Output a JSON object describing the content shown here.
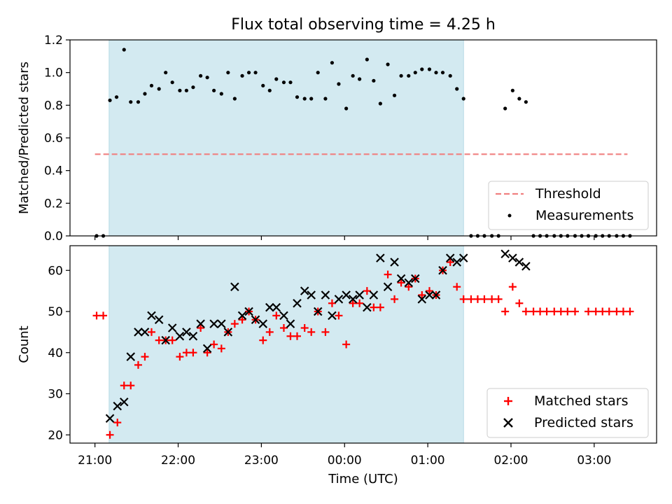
{
  "chart_data": [
    {
      "type": "scatter",
      "title": "Flux total observing time = 4.25 h",
      "xlabel": "",
      "ylabel": "Matched/Predicted stars",
      "xlim": [
        20.7,
        27.75
      ],
      "ylim": [
        0,
        1.2
      ],
      "yticks": [
        0,
        0.2,
        0.4,
        0.6,
        0.8,
        1.0,
        1.2
      ],
      "ytick_labels": [
        "0.0",
        "0.2",
        "0.4",
        "0.6",
        "0.8",
        "1.0",
        "1.2"
      ],
      "shaded_span_x": [
        21.17,
        25.43
      ],
      "shaded_color": "#d3eaf1",
      "threshold": {
        "name": "Threshold",
        "y": 0.5,
        "x": [
          21.0,
          27.4
        ],
        "color": "#f08080",
        "style": "dashed"
      },
      "legend_position": "lower-right",
      "legend": [
        "Threshold",
        "Measurements"
      ],
      "series": [
        {
          "name": "Measurements",
          "color": "#000000",
          "marker": "dot",
          "points": [
            [
              21.02,
              0.0
            ],
            [
              21.1,
              0.0
            ],
            [
              21.18,
              0.83
            ],
            [
              21.26,
              0.85
            ],
            [
              21.35,
              1.14
            ],
            [
              21.43,
              0.82
            ],
            [
              21.52,
              0.82
            ],
            [
              21.6,
              0.87
            ],
            [
              21.68,
              0.92
            ],
            [
              21.77,
              0.9
            ],
            [
              21.85,
              1.0
            ],
            [
              21.93,
              0.94
            ],
            [
              22.02,
              0.89
            ],
            [
              22.1,
              0.89
            ],
            [
              22.18,
              0.91
            ],
            [
              22.27,
              0.98
            ],
            [
              22.35,
              0.97
            ],
            [
              22.43,
              0.89
            ],
            [
              22.52,
              0.87
            ],
            [
              22.6,
              1.0
            ],
            [
              22.68,
              0.84
            ],
            [
              22.77,
              0.98
            ],
            [
              22.85,
              1.0
            ],
            [
              22.93,
              1.0
            ],
            [
              23.02,
              0.92
            ],
            [
              23.1,
              0.89
            ],
            [
              23.18,
              0.96
            ],
            [
              23.27,
              0.94
            ],
            [
              23.35,
              0.94
            ],
            [
              23.43,
              0.85
            ],
            [
              23.52,
              0.84
            ],
            [
              23.6,
              0.84
            ],
            [
              23.68,
              1.0
            ],
            [
              23.77,
              0.84
            ],
            [
              23.85,
              1.06
            ],
            [
              23.93,
              0.93
            ],
            [
              24.02,
              0.78
            ],
            [
              24.1,
              0.98
            ],
            [
              24.18,
              0.96
            ],
            [
              24.27,
              1.08
            ],
            [
              24.35,
              0.95
            ],
            [
              24.43,
              0.81
            ],
            [
              24.52,
              1.05
            ],
            [
              24.6,
              0.86
            ],
            [
              24.68,
              0.98
            ],
            [
              24.77,
              0.98
            ],
            [
              24.85,
              1.0
            ],
            [
              24.93,
              1.02
            ],
            [
              25.02,
              1.02
            ],
            [
              25.1,
              1.0
            ],
            [
              25.18,
              1.0
            ],
            [
              25.27,
              0.98
            ],
            [
              25.35,
              0.9
            ],
            [
              25.43,
              0.84
            ],
            [
              25.52,
              0.0
            ],
            [
              25.6,
              0.0
            ],
            [
              25.68,
              0.0
            ],
            [
              25.77,
              0.0
            ],
            [
              25.85,
              0.0
            ],
            [
              25.93,
              0.78
            ],
            [
              26.02,
              0.89
            ],
            [
              26.1,
              0.84
            ],
            [
              26.18,
              0.82
            ],
            [
              26.27,
              0.0
            ],
            [
              26.35,
              0.0
            ],
            [
              26.43,
              0.0
            ],
            [
              26.52,
              0.0
            ],
            [
              26.6,
              0.0
            ],
            [
              26.68,
              0.0
            ],
            [
              26.77,
              0.0
            ],
            [
              26.85,
              0.0
            ],
            [
              26.93,
              0.0
            ],
            [
              27.02,
              0.0
            ],
            [
              27.1,
              0.0
            ],
            [
              27.18,
              0.0
            ],
            [
              27.27,
              0.0
            ],
            [
              27.35,
              0.0
            ],
            [
              27.43,
              0.0
            ]
          ]
        }
      ]
    },
    {
      "type": "scatter",
      "title": "",
      "xlabel": "Time (UTC)",
      "ylabel": "Count",
      "xlim": [
        20.7,
        27.75
      ],
      "ylim": [
        18,
        66
      ],
      "yticks": [
        20,
        30,
        40,
        50,
        60
      ],
      "ytick_labels": [
        "20",
        "30",
        "40",
        "50",
        "60"
      ],
      "xticks": [
        21,
        22,
        23,
        24,
        25,
        26,
        27
      ],
      "xtick_labels": [
        "21:00",
        "22:00",
        "23:00",
        "00:00",
        "01:00",
        "02:00",
        "03:00"
      ],
      "shaded_span_x": [
        21.17,
        25.43
      ],
      "shaded_color": "#d3eaf1",
      "legend_position": "lower-right",
      "legend": [
        "Matched stars",
        "Predicted stars"
      ],
      "series": [
        {
          "name": "Matched stars",
          "color": "#ff0000",
          "marker": "plus",
          "points": [
            [
              21.02,
              49
            ],
            [
              21.1,
              49
            ],
            [
              21.18,
              20
            ],
            [
              21.27,
              23
            ],
            [
              21.35,
              32
            ],
            [
              21.43,
              32
            ],
            [
              21.52,
              37
            ],
            [
              21.6,
              39
            ],
            [
              21.68,
              45
            ],
            [
              21.77,
              43
            ],
            [
              21.85,
              43
            ],
            [
              21.93,
              43
            ],
            [
              22.02,
              39
            ],
            [
              22.1,
              40
            ],
            [
              22.18,
              40
            ],
            [
              22.27,
              46
            ],
            [
              22.35,
              40
            ],
            [
              22.43,
              42
            ],
            [
              22.52,
              41
            ],
            [
              22.6,
              45
            ],
            [
              22.68,
              47
            ],
            [
              22.77,
              48
            ],
            [
              22.85,
              50
            ],
            [
              22.93,
              48
            ],
            [
              23.02,
              43
            ],
            [
              23.1,
              45
            ],
            [
              23.18,
              49
            ],
            [
              23.27,
              46
            ],
            [
              23.35,
              44
            ],
            [
              23.43,
              44
            ],
            [
              23.52,
              46
            ],
            [
              23.6,
              45
            ],
            [
              23.68,
              50
            ],
            [
              23.77,
              45
            ],
            [
              23.85,
              52
            ],
            [
              23.93,
              49
            ],
            [
              24.02,
              42
            ],
            [
              24.1,
              52
            ],
            [
              24.18,
              52
            ],
            [
              24.27,
              55
            ],
            [
              24.35,
              51
            ],
            [
              24.43,
              51
            ],
            [
              24.52,
              59
            ],
            [
              24.6,
              53
            ],
            [
              24.68,
              57
            ],
            [
              24.77,
              56
            ],
            [
              24.85,
              58
            ],
            [
              24.93,
              54
            ],
            [
              25.02,
              55
            ],
            [
              25.1,
              54
            ],
            [
              25.18,
              60
            ],
            [
              25.27,
              62
            ],
            [
              25.35,
              56
            ],
            [
              25.43,
              53
            ],
            [
              25.52,
              53
            ],
            [
              25.6,
              53
            ],
            [
              25.68,
              53
            ],
            [
              25.77,
              53
            ],
            [
              25.85,
              53
            ],
            [
              25.93,
              50
            ],
            [
              26.02,
              56
            ],
            [
              26.1,
              52
            ],
            [
              26.18,
              50
            ],
            [
              26.27,
              50
            ],
            [
              26.35,
              50
            ],
            [
              26.43,
              50
            ],
            [
              26.52,
              50
            ],
            [
              26.6,
              50
            ],
            [
              26.68,
              50
            ],
            [
              26.77,
              50
            ],
            [
              26.93,
              50
            ],
            [
              27.02,
              50
            ],
            [
              27.1,
              50
            ],
            [
              27.18,
              50
            ],
            [
              27.27,
              50
            ],
            [
              27.35,
              50
            ],
            [
              27.43,
              50
            ]
          ]
        },
        {
          "name": "Predicted stars",
          "color": "#000000",
          "marker": "x",
          "points": [
            [
              21.18,
              24
            ],
            [
              21.27,
              27
            ],
            [
              21.35,
              28
            ],
            [
              21.43,
              39
            ],
            [
              21.52,
              45
            ],
            [
              21.6,
              45
            ],
            [
              21.68,
              49
            ],
            [
              21.77,
              48
            ],
            [
              21.85,
              43
            ],
            [
              21.93,
              46
            ],
            [
              22.02,
              44
            ],
            [
              22.1,
              45
            ],
            [
              22.18,
              44
            ],
            [
              22.27,
              47
            ],
            [
              22.35,
              41
            ],
            [
              22.43,
              47
            ],
            [
              22.52,
              47
            ],
            [
              22.6,
              45
            ],
            [
              22.68,
              56
            ],
            [
              22.77,
              49
            ],
            [
              22.85,
              50
            ],
            [
              22.93,
              48
            ],
            [
              23.02,
              47
            ],
            [
              23.1,
              51
            ],
            [
              23.18,
              51
            ],
            [
              23.27,
              49
            ],
            [
              23.35,
              47
            ],
            [
              23.43,
              52
            ],
            [
              23.52,
              55
            ],
            [
              23.6,
              54
            ],
            [
              23.68,
              50
            ],
            [
              23.77,
              54
            ],
            [
              23.85,
              49
            ],
            [
              23.93,
              53
            ],
            [
              24.02,
              54
            ],
            [
              24.1,
              53
            ],
            [
              24.18,
              54
            ],
            [
              24.27,
              51
            ],
            [
              24.35,
              54
            ],
            [
              24.43,
              63
            ],
            [
              24.52,
              56
            ],
            [
              24.6,
              62
            ],
            [
              24.68,
              58
            ],
            [
              24.77,
              57
            ],
            [
              24.85,
              58
            ],
            [
              24.93,
              53
            ],
            [
              25.02,
              54
            ],
            [
              25.1,
              54
            ],
            [
              25.18,
              60
            ],
            [
              25.27,
              63
            ],
            [
              25.35,
              62
            ],
            [
              25.43,
              63
            ],
            [
              25.93,
              64
            ],
            [
              26.02,
              63
            ],
            [
              26.1,
              62
            ],
            [
              26.18,
              61
            ]
          ]
        }
      ]
    }
  ]
}
